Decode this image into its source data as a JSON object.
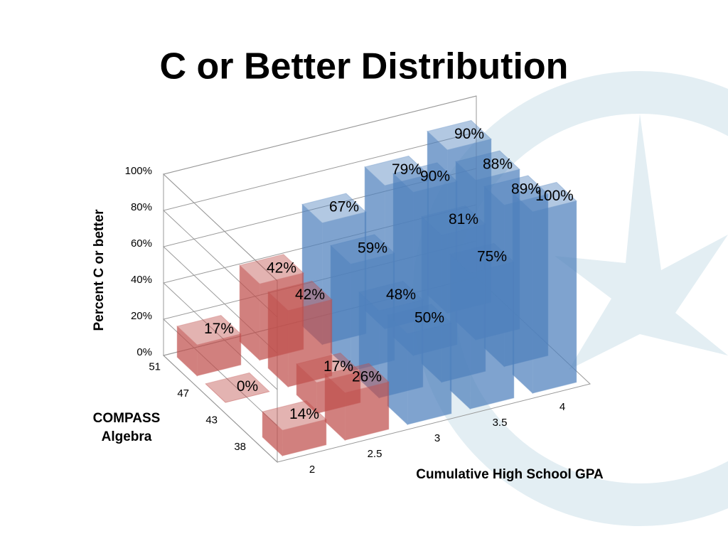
{
  "chart_data": {
    "type": "bar3d",
    "title": "C or Better Distribution",
    "y_label": "Percent C or better",
    "x_label": "Cumulative High School GPA",
    "z_label": "COMPASS Algebra",
    "categories": [
      "2",
      "2.5",
      "3",
      "3.5",
      "4"
    ],
    "category_colors": [
      "#c0504d",
      "#c0504d",
      "#4f81bd",
      "#4f81bd",
      "#4f81bd"
    ],
    "series": [
      {
        "name": "38",
        "values": [
          14,
          26,
          50,
          75,
          100
        ],
        "value_labels": [
          "14%",
          "26%",
          "50%",
          "75%",
          "100%"
        ]
      },
      {
        "name": "43",
        "values": [
          null,
          17,
          48,
          81,
          89
        ],
        "value_labels": [
          null,
          "17%",
          "48%",
          "81%",
          "89%"
        ]
      },
      {
        "name": "47",
        "values": [
          0,
          42,
          59,
          90,
          88
        ],
        "value_labels": [
          "0%",
          "42%",
          "59%",
          "90%",
          "88%"
        ]
      },
      {
        "name": "51",
        "values": [
          17,
          42,
          67,
          79,
          90
        ],
        "value_labels": [
          "17%",
          "42%",
          "67%",
          "79%",
          "90%"
        ]
      }
    ],
    "ylim": [
      0,
      100
    ],
    "yticks": [
      {
        "value": 0,
        "label": "0%"
      },
      {
        "value": 20,
        "label": "20%"
      },
      {
        "value": 40,
        "label": "40%"
      },
      {
        "value": 60,
        "label": "60%"
      },
      {
        "value": 80,
        "label": "80%"
      },
      {
        "value": 100,
        "label": "100%"
      }
    ],
    "grid": true
  }
}
